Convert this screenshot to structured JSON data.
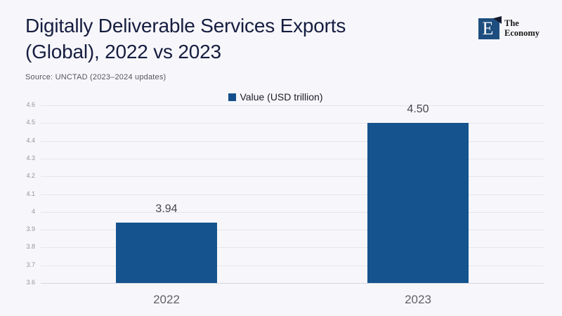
{
  "header": {
    "title_lines": [
      "Digitally Deliverable Services Exports",
      "(Global), 2022 vs 2023"
    ],
    "source": "Source: UNCTAD (2023–2024 updates)"
  },
  "logo": {
    "monogram": "E",
    "name_lines": [
      "The",
      "Economy"
    ]
  },
  "chart_data": {
    "type": "bar",
    "categories": [
      "2022",
      "2023"
    ],
    "values": [
      3.94,
      4.5
    ],
    "value_labels": [
      "3.94",
      "4.50"
    ],
    "legend": "Value (USD trillion)",
    "legend_position": "top-center",
    "title": "Digitally Deliverable Services Exports (Global), 2022 vs 2023",
    "xlabel": "",
    "ylabel": "",
    "ylim": [
      3.6,
      4.6
    ],
    "ytick_step": 0.1,
    "grid": true
  },
  "colors": {
    "background": "#f7f7fb",
    "bar": "#15538f",
    "legend_swatch": "#15508c",
    "title_text": "#161d40",
    "source_text": "#55555e",
    "gridline": "#e4e6ec",
    "axis_line": "#d4d6dc",
    "ytick_text": "#93939b",
    "xtick_text": "#606066",
    "value_label_text": "#45454c",
    "logo_square": "#1e4e7f",
    "logo_flag": "#141b30",
    "logo_text": "#191919"
  }
}
